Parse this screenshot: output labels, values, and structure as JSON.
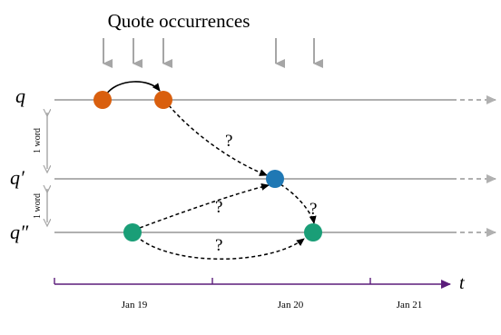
{
  "title": "Quote occurrences",
  "row_labels": {
    "q": "q",
    "q_prime": "q′",
    "q_double_prime": "q″"
  },
  "word_labels": [
    "1 word",
    "1 word"
  ],
  "question_mark": "?",
  "time_label": "t",
  "dates": [
    "Jan 19",
    "Jan 20",
    "Jan 21"
  ],
  "colors": {
    "orange": "#d95f0e",
    "blue": "#1f78b4",
    "green": "#1a9e77",
    "line": "#b0b0b0",
    "arrow_gray": "#a6a6a6",
    "axis": "#5b1d7a"
  }
}
